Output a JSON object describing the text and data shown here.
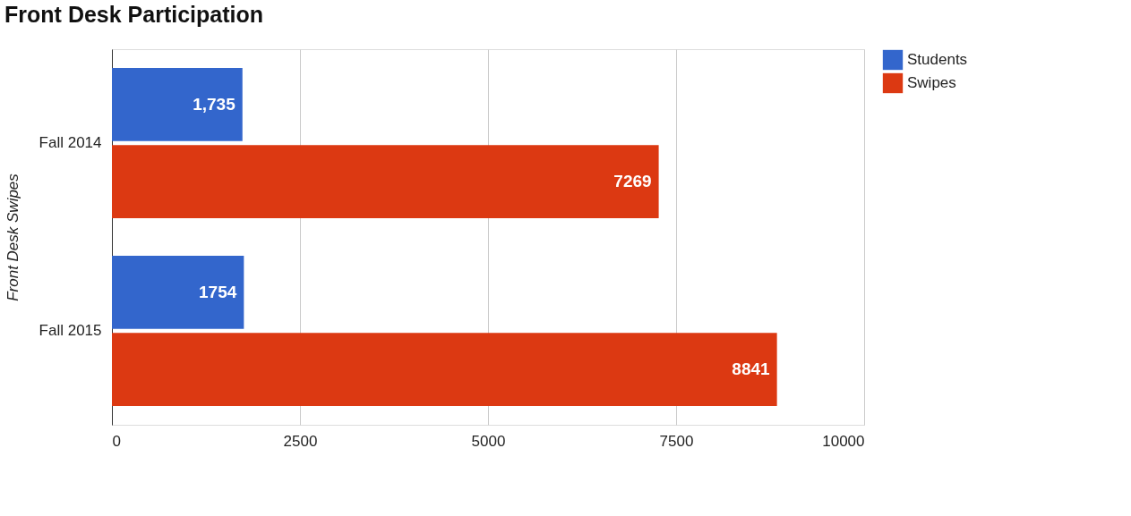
{
  "chart_data": {
    "type": "bar",
    "orientation": "horizontal",
    "title": "Front Desk Participation",
    "ylabel": "Front Desk Swipes",
    "categories": [
      "Fall 2014",
      "Fall 2015"
    ],
    "series": [
      {
        "name": "Students",
        "color": "#3366cc",
        "values": [
          1735,
          1754
        ],
        "value_labels": [
          "1,735",
          "1754"
        ]
      },
      {
        "name": "Swipes",
        "color": "#dc3912",
        "values": [
          7269,
          8841
        ],
        "value_labels": [
          "7269",
          "8841"
        ]
      }
    ],
    "xlim": [
      0,
      10000
    ],
    "xticks": [
      0,
      2500,
      5000,
      7500,
      10000
    ],
    "grid": "x",
    "legend": "right"
  }
}
